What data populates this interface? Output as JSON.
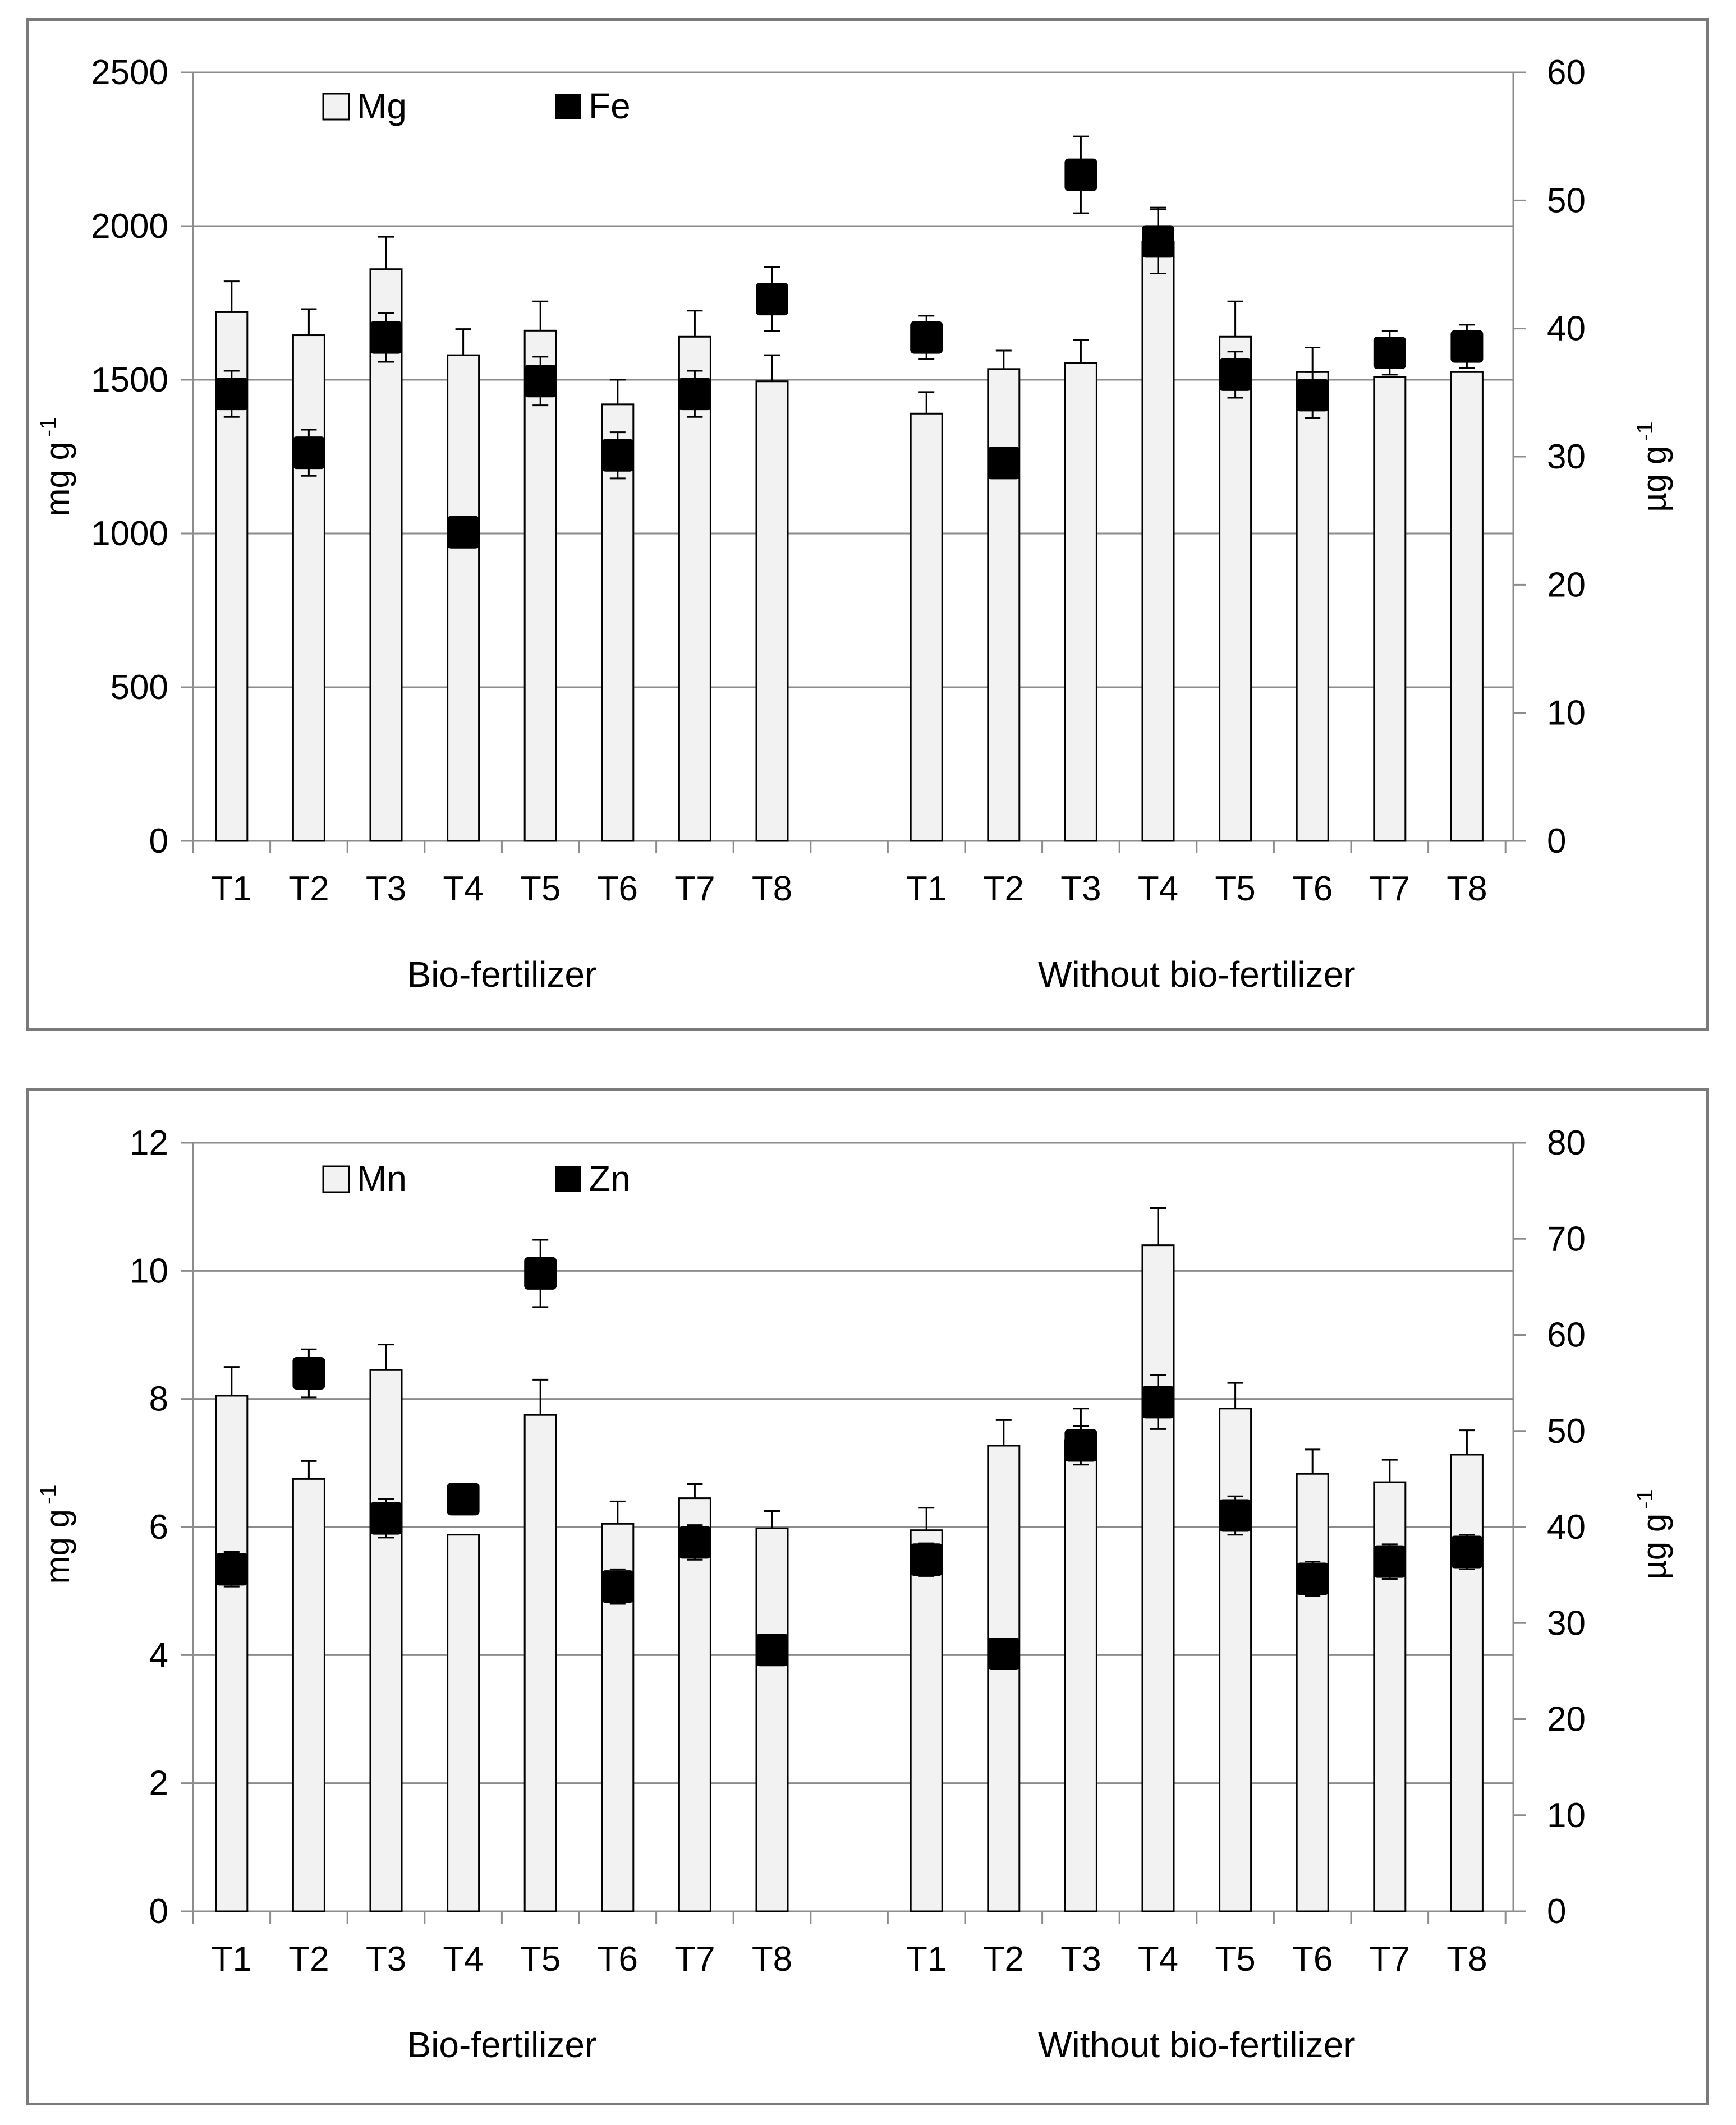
{
  "chart_data": [
    {
      "type": "bar",
      "title": "",
      "groups": [
        "Bio-fertilizer",
        "Without bio-fertilizer"
      ],
      "categories": [
        "T1",
        "T2",
        "T3",
        "T4",
        "T5",
        "T6",
        "T7",
        "T8"
      ],
      "left_axis": {
        "label": "mg g",
        "superscript": "-1",
        "ylim": [
          0,
          2500
        ],
        "ticks": [
          "0",
          "500",
          "1000",
          "1500",
          "2000",
          "2500"
        ]
      },
      "right_axis": {
        "label": "µg g",
        "superscript": "-1",
        "ylim": [
          0,
          60
        ],
        "ticks": [
          "0",
          "10",
          "20",
          "30",
          "40",
          "50",
          "60"
        ]
      },
      "legend": {
        "bar_name": "Mg",
        "marker_name": "Fe",
        "position": "top-left"
      },
      "series": [
        {
          "name": "Mg",
          "kind": "bar",
          "axis": "left",
          "values": [
            [
              1720,
              1645,
              1860,
              1580,
              1660,
              1420,
              1640,
              1495
            ],
            [
              1390,
              1535,
              1555,
              1950,
              1640,
              1525,
              1510,
              1525
            ]
          ],
          "errors": [
            [
              100,
              85,
              105,
              85,
              95,
              80,
              85,
              85
            ],
            [
              70,
              60,
              75,
              110,
              115,
              80,
              0,
              0
            ]
          ]
        },
        {
          "name": "Fe",
          "kind": "marker",
          "axis": "right",
          "values": [
            [
              34.9,
              30.3,
              39.3,
              24.1,
              35.9,
              30.1,
              34.9,
              42.3
            ],
            [
              39.3,
              29.5,
              52.0,
              46.8,
              36.4,
              34.8,
              38.1,
              38.6
            ]
          ],
          "errors": [
            [
              1.8,
              1.8,
              1.9,
              0,
              1.9,
              1.8,
              1.8,
              2.5
            ],
            [
              1.7,
              0,
              3.0,
              2.5,
              1.8,
              1.8,
              1.7,
              1.7
            ]
          ]
        }
      ]
    },
    {
      "type": "bar",
      "title": "",
      "groups": [
        "Bio-fertilizer",
        "Without bio-fertilizer"
      ],
      "categories": [
        "T1",
        "T2",
        "T3",
        "T4",
        "T5",
        "T6",
        "T7",
        "T8"
      ],
      "left_axis": {
        "label": "mg g",
        "superscript": "-1",
        "ylim": [
          0,
          12
        ],
        "ticks": [
          "0",
          "2",
          "4",
          "6",
          "8",
          "10",
          "12"
        ]
      },
      "right_axis": {
        "label": "µg g",
        "superscript": "-1",
        "ylim": [
          0,
          80
        ],
        "ticks": [
          "0",
          "10",
          "20",
          "30",
          "40",
          "50",
          "60",
          "70",
          "80"
        ]
      },
      "legend": {
        "bar_name": "Mn",
        "marker_name": "Zn",
        "position": "top-left"
      },
      "series": [
        {
          "name": "Mn",
          "kind": "bar",
          "axis": "left",
          "values": [
            [
              8.05,
              6.75,
              8.45,
              5.88,
              7.75,
              6.05,
              6.45,
              5.98
            ],
            [
              5.95,
              7.27,
              7.35,
              10.4,
              7.85,
              6.83,
              6.7,
              7.13
            ]
          ],
          "errors": [
            [
              0.45,
              0.28,
              0.4,
              0,
              0.55,
              0.35,
              0.22,
              0.27
            ],
            [
              0.35,
              0.4,
              0.5,
              0.58,
              0.4,
              0.38,
              0.35,
              0.38
            ]
          ]
        },
        {
          "name": "Zn",
          "kind": "marker",
          "axis": "right",
          "values": [
            [
              35.6,
              56.0,
              40.9,
              42.9,
              66.4,
              33.8,
              38.4,
              27.2
            ],
            [
              36.6,
              26.8,
              48.5,
              53.0,
              41.2,
              34.6,
              36.4,
              37.4
            ]
          ],
          "errors": [
            [
              1.8,
              2.5,
              2.0,
              1.5,
              3.5,
              1.8,
              1.8,
              1.5
            ],
            [
              1.7,
              0,
              2.0,
              2.8,
              2.0,
              1.8,
              1.8,
              1.8
            ]
          ]
        }
      ]
    }
  ]
}
